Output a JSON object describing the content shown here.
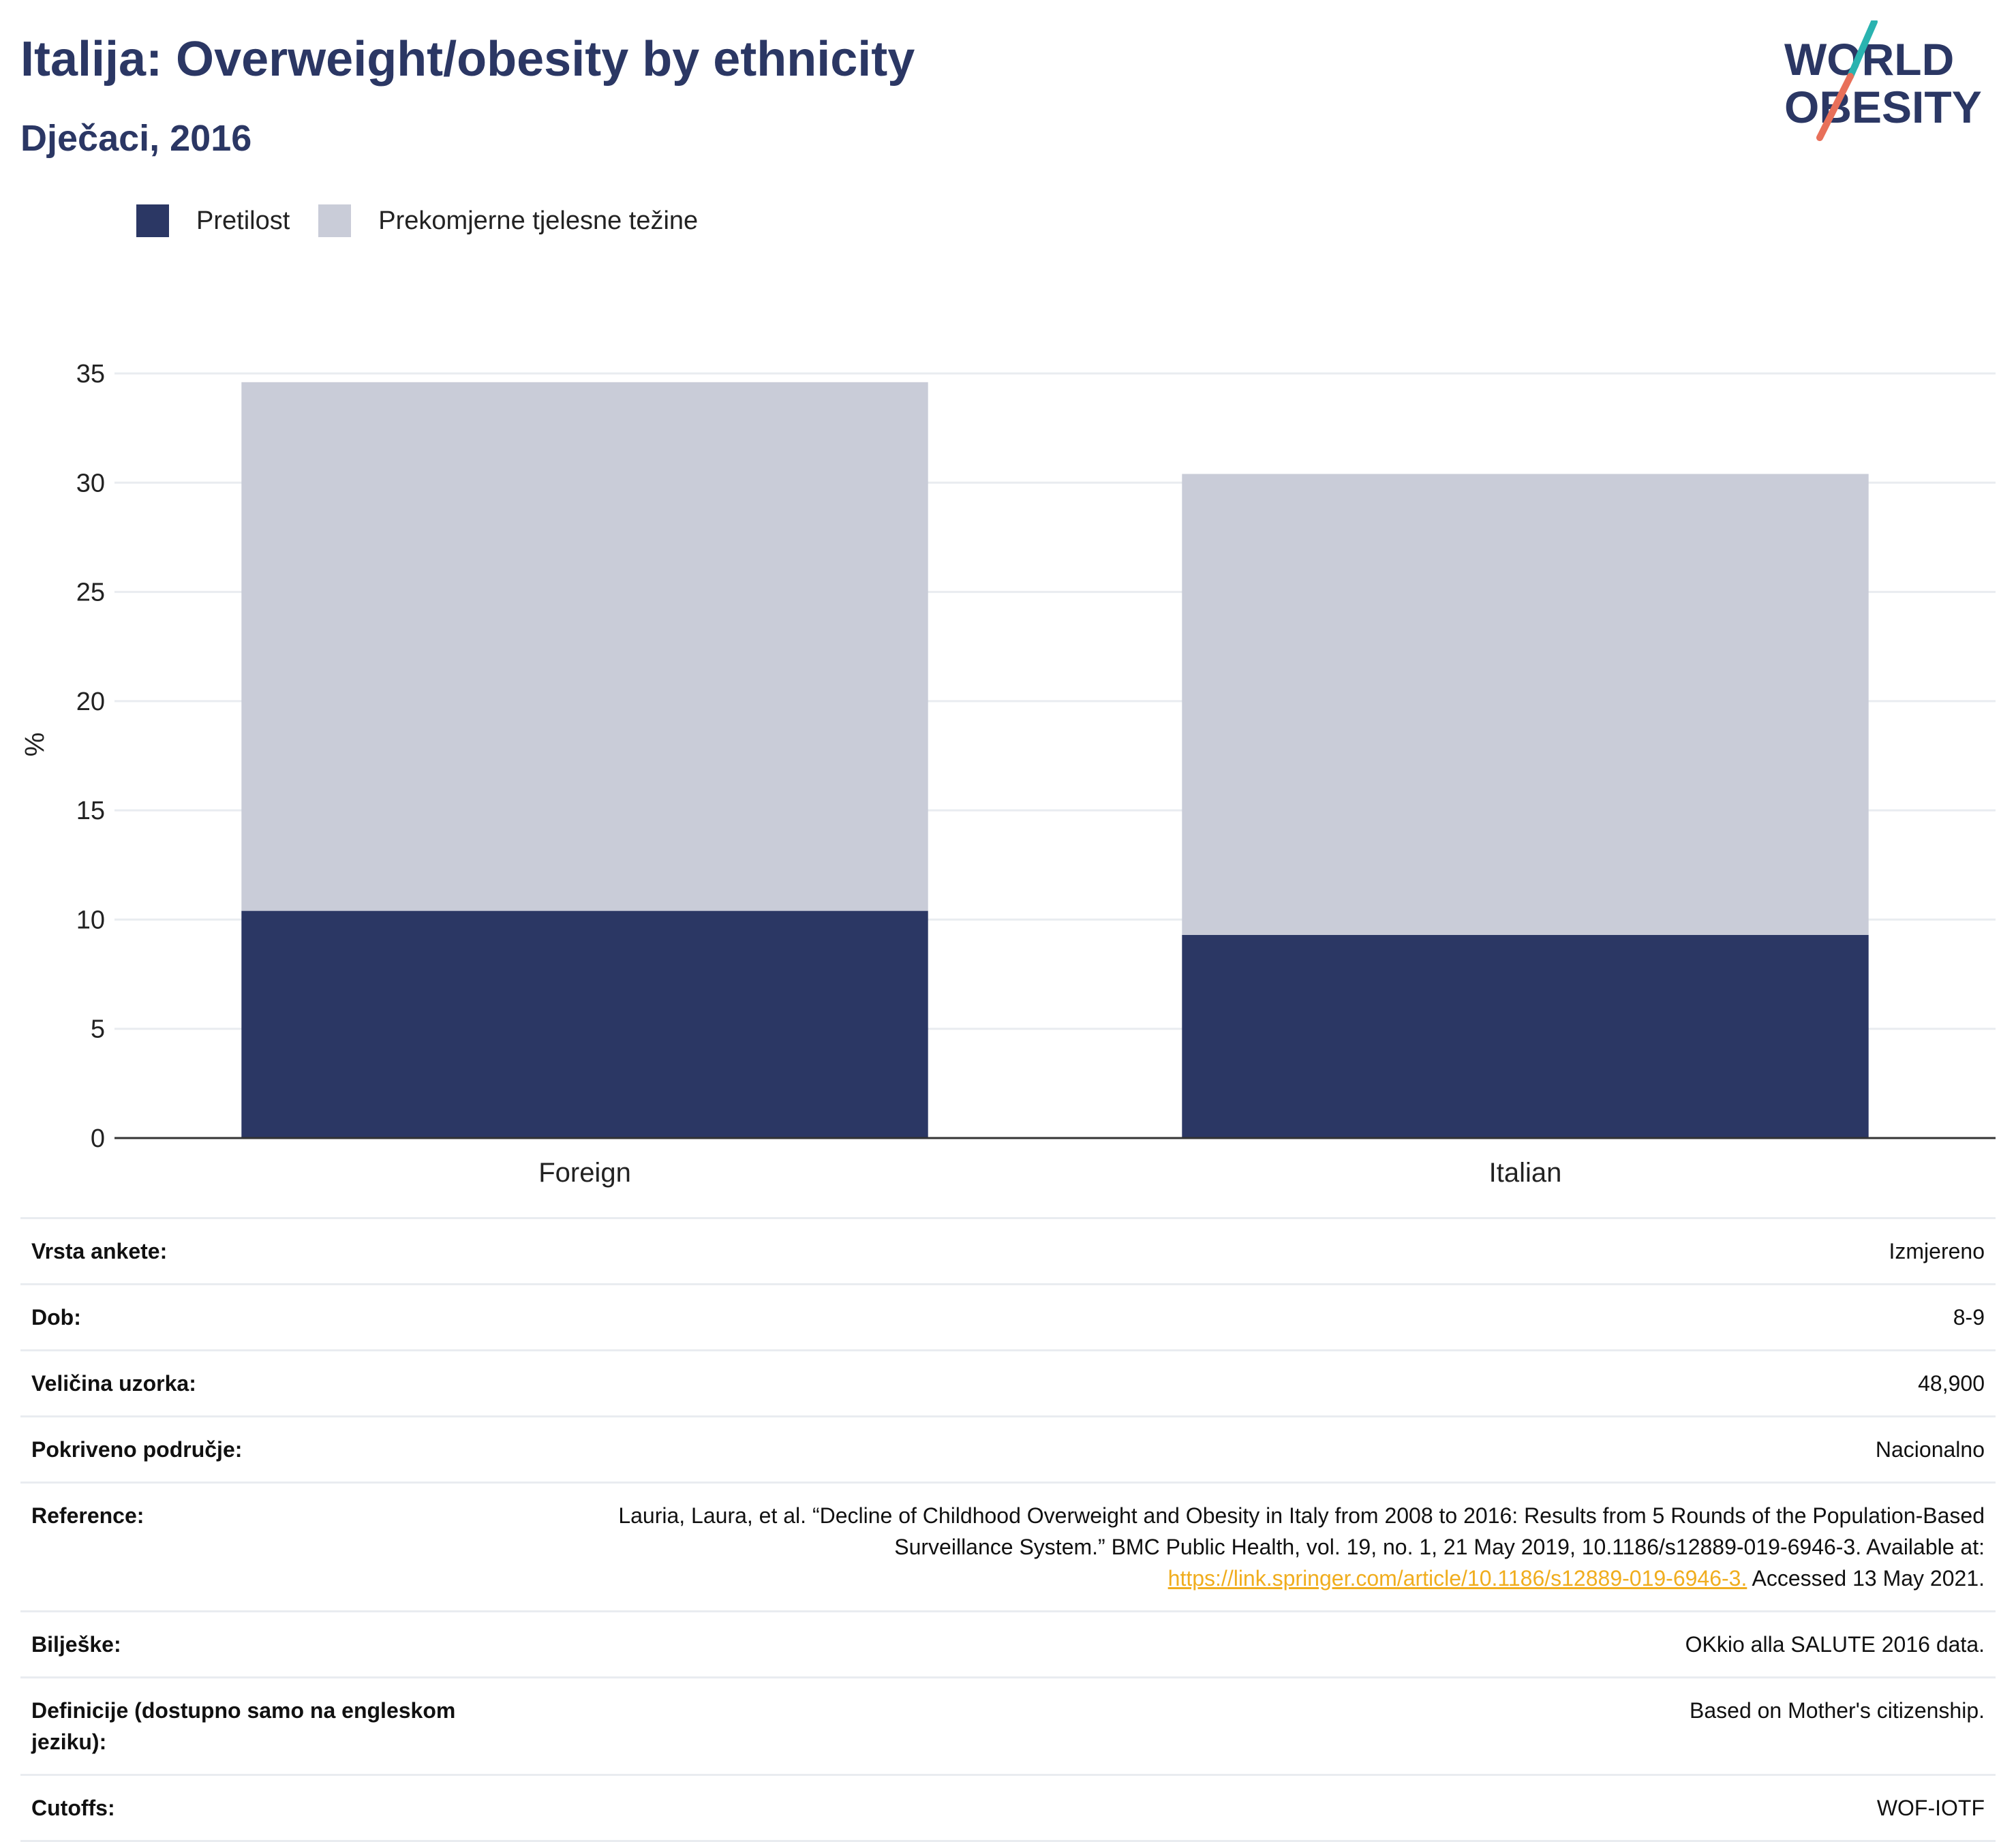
{
  "header": {
    "title": "Italija: Overweight/obesity by ethnicity",
    "subtitle": "Dječaci, 2016"
  },
  "logo": {
    "line1": "WORLD",
    "line2": "OBESITY",
    "colors": {
      "text": "#2b3764",
      "slash_teal": "#2ab3b0",
      "slash_coral": "#e8705a"
    }
  },
  "colors": {
    "obesity": "#2b3764",
    "overweight": "#c9ccd8",
    "grid": "#e9ecf0",
    "axis": "#333333",
    "link": "#f0ad1e"
  },
  "chart_data": {
    "type": "bar",
    "stacked": true,
    "categories": [
      "Foreign",
      "Italian"
    ],
    "series": [
      {
        "name": "Pretilost",
        "values": [
          10.4,
          9.3
        ],
        "color": "#2b3764"
      },
      {
        "name": "Prekomjerne tjelesne težine",
        "values": [
          24.2,
          21.1
        ],
        "color": "#c9ccd8"
      }
    ],
    "ylabel": "%",
    "xlabel": "",
    "ylim": [
      0,
      35
    ],
    "yticks": [
      0,
      5,
      10,
      15,
      20,
      25,
      30,
      35
    ],
    "grid": true,
    "legend_position": "top-left"
  },
  "meta": [
    {
      "label": "Vrsta ankete:",
      "value": "Izmjereno"
    },
    {
      "label": "Dob:",
      "value": "8-9"
    },
    {
      "label": "Veličina uzorka:",
      "value": "48,900"
    },
    {
      "label": "Pokriveno područje:",
      "value": "Nacionalno"
    },
    {
      "label": "Reference:",
      "value": "Lauria, Laura, et al. “Decline of Childhood Overweight and Obesity in Italy from 2008 to 2016: Results from 5 Rounds of the Population-Based Surveillance System.” BMC Public Health, vol. 19, no. 1, 21 May 2019, 10.1186/s12889-019-6946-3. Available at:",
      "link": "https://link.springer.com/article/10.1186/s12889-019-6946-3.",
      "after": " Accessed 13 May 2021."
    },
    {
      "label": "Bilješke:",
      "value": "OKkio alla SALUTE 2016 data."
    },
    {
      "label": "Definicije (dostupno samo na engleskom jeziku):",
      "value": "Based on Mother's citizenship."
    },
    {
      "label": "Cutoffs:",
      "value": "WOF-IOTF"
    }
  ]
}
